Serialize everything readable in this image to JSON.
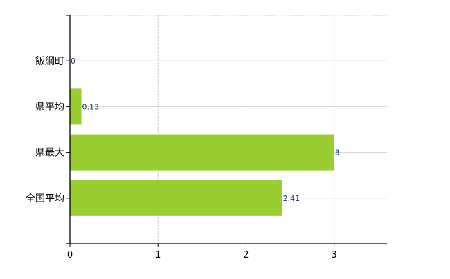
{
  "chart_data": {
    "type": "bar",
    "orientation": "horizontal",
    "categories": [
      "飯綱町",
      "県平均",
      "県最大",
      "全国平均"
    ],
    "values": [
      0,
      0.13,
      3,
      2.41
    ],
    "data_labels": [
      "0",
      "0.13",
      "3",
      "2.41"
    ],
    "x_ticks": [
      "0",
      "1",
      "2",
      "3"
    ],
    "xlim": [
      0,
      3.6
    ],
    "title": "",
    "xlabel": "",
    "ylabel": "",
    "grid": true,
    "colors": {
      "bar": "#9ACD32",
      "label": "#1a3a6a",
      "grid": "#d0d0d0",
      "axis": "#000000"
    }
  }
}
